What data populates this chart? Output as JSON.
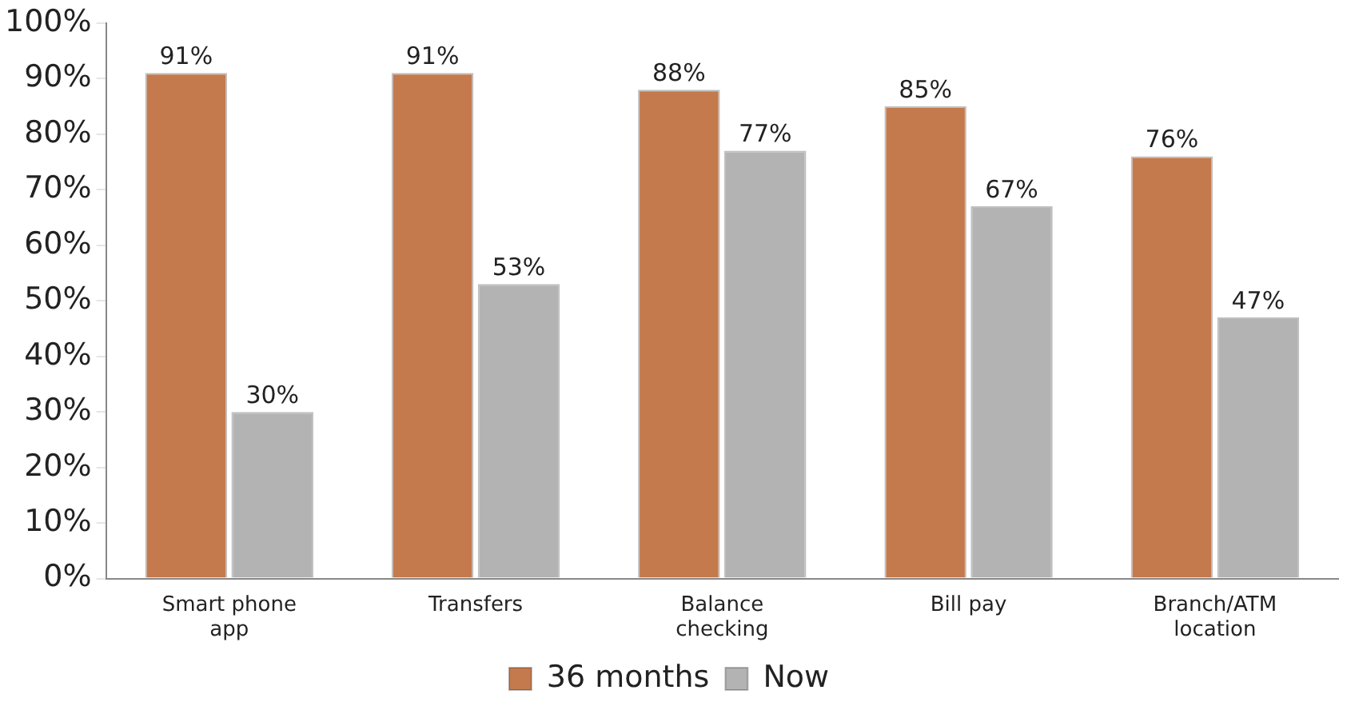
{
  "chart_data": {
    "type": "bar",
    "categories": [
      "Smart phone app",
      "Transfers",
      "Balance checking",
      "Bill pay",
      "Branch/ATM location"
    ],
    "series": [
      {
        "name": "36 months",
        "color": "#c47a4c",
        "values": [
          91,
          91,
          88,
          85,
          76
        ],
        "value_labels": [
          "91%",
          "91%",
          "88%",
          "85%",
          "76%"
        ]
      },
      {
        "name": "Now",
        "color": "#b3b3b3",
        "values": [
          30,
          53,
          77,
          67,
          47
        ],
        "value_labels": [
          "30%",
          "53%",
          "77%",
          "67%",
          "47%"
        ]
      }
    ],
    "ylim": [
      0,
      100
    ],
    "yticks": [
      {
        "value": 0,
        "label": "0%"
      },
      {
        "value": 10,
        "label": "10%"
      },
      {
        "value": 20,
        "label": "20%"
      },
      {
        "value": 30,
        "label": "30%"
      },
      {
        "value": 40,
        "label": "40%"
      },
      {
        "value": 50,
        "label": "50%"
      },
      {
        "value": 60,
        "label": "60%"
      },
      {
        "value": 70,
        "label": "70%"
      },
      {
        "value": 80,
        "label": "80%"
      },
      {
        "value": 90,
        "label": "90%"
      },
      {
        "value": 100,
        "label": "100%"
      }
    ],
    "grid": false,
    "legend": "bottom"
  }
}
